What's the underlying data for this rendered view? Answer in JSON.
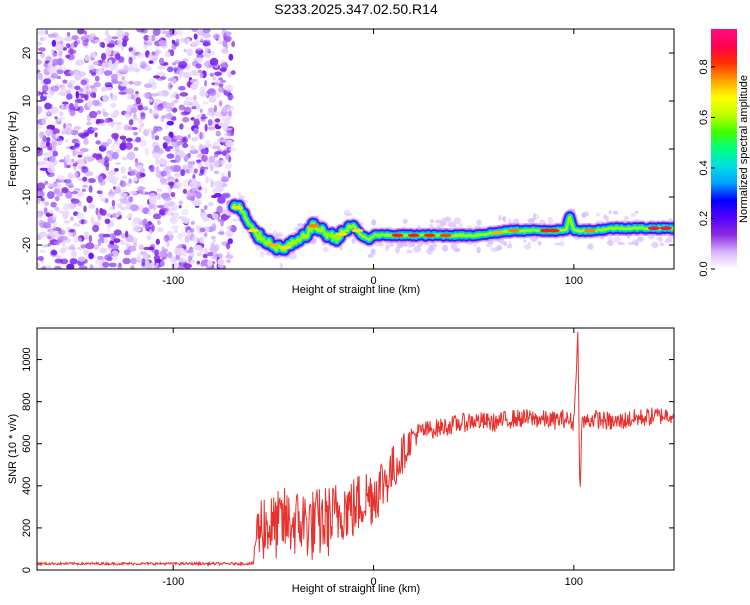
{
  "page_title": "S233.2025.347.02.50.R14",
  "chart_data": [
    {
      "type": "heatmap",
      "xlabel": "Height of straight line (km)",
      "ylabel": "Frequency (Hz)",
      "xlim": [
        -168,
        150
      ],
      "ylim": [
        -25,
        25
      ],
      "x_ticks": [
        -100,
        0,
        100
      ],
      "y_ticks": [
        -20,
        -10,
        0,
        10,
        20
      ],
      "noise_region_x": [
        -168,
        -70
      ],
      "ridge": {
        "x": [
          -70,
          -66,
          -62,
          -58,
          -54,
          -50,
          -46,
          -42,
          -38,
          -34,
          -30,
          -26,
          -22,
          -18,
          -14,
          -10,
          -6,
          -2,
          0,
          10,
          20,
          30,
          40,
          50,
          60,
          70,
          80,
          90,
          96,
          98,
          100,
          104,
          110,
          120,
          130,
          140,
          150
        ],
        "freq": [
          -12,
          -12.5,
          -16,
          -18,
          -19,
          -20,
          -21,
          -20,
          -19.5,
          -18,
          -16,
          -17,
          -18,
          -18.5,
          -17,
          -16,
          -18,
          -19,
          -18,
          -18,
          -18,
          -18,
          -18,
          -18,
          -17.5,
          -17,
          -17,
          -17,
          -17,
          -14,
          -17,
          -17,
          -17,
          -16.5,
          -16.5,
          -16.5,
          -16.5
        ]
      },
      "colorbar": {
        "label": "Normalized spectral amplitude",
        "range": [
          0,
          0.95
        ],
        "ticks": [
          0.0,
          0.2,
          0.4,
          0.6,
          0.8
        ],
        "tick_labels": [
          "0.0",
          "0.2",
          "0.4",
          "0.6",
          "0.8"
        ],
        "colors": [
          "#ffffff",
          "#d9b3ff",
          "#8a2be2",
          "#5500ff",
          "#0000ff",
          "#00a0ff",
          "#00e0e0",
          "#00ff80",
          "#40ff00",
          "#c0ff00",
          "#ffff00",
          "#ffa000",
          "#ff3000",
          "#ff0050",
          "#ff1080"
        ]
      }
    },
    {
      "type": "line",
      "xlabel": "Height of straight line (km)",
      "ylabel": "SNR (10 * v/v)",
      "xlim": [
        -168,
        150
      ],
      "ylim": [
        0,
        1150
      ],
      "x_ticks": [
        -100,
        0,
        100
      ],
      "y_ticks": [
        0,
        200,
        400,
        600,
        800,
        1000
      ],
      "color": "#e8302c",
      "envelope": {
        "x": [
          -168,
          -60,
          -59,
          -57,
          -55,
          -50,
          -45,
          -40,
          -35,
          -30,
          -25,
          -20,
          -15,
          -10,
          -5,
          0,
          5,
          10,
          15,
          20,
          25,
          30,
          40,
          50,
          60,
          70,
          80,
          90,
          95,
          100,
          101,
          102,
          103,
          104,
          110,
          120,
          130,
          140,
          150
        ],
        "base": [
          30,
          30,
          150,
          200,
          220,
          200,
          230,
          220,
          230,
          210,
          230,
          240,
          300,
          290,
          340,
          360,
          420,
          480,
          560,
          640,
          660,
          670,
          690,
          710,
          700,
          720,
          720,
          710,
          720,
          700,
          900,
          1120,
          350,
          700,
          720,
          700,
          720,
          730,
          740
        ],
        "amp": [
          6,
          6,
          120,
          150,
          180,
          160,
          170,
          160,
          170,
          180,
          170,
          180,
          160,
          160,
          150,
          150,
          140,
          120,
          90,
          60,
          50,
          45,
          45,
          45,
          45,
          45,
          45,
          45,
          45,
          45,
          20,
          20,
          20,
          45,
          45,
          45,
          45,
          45,
          40
        ]
      }
    }
  ]
}
